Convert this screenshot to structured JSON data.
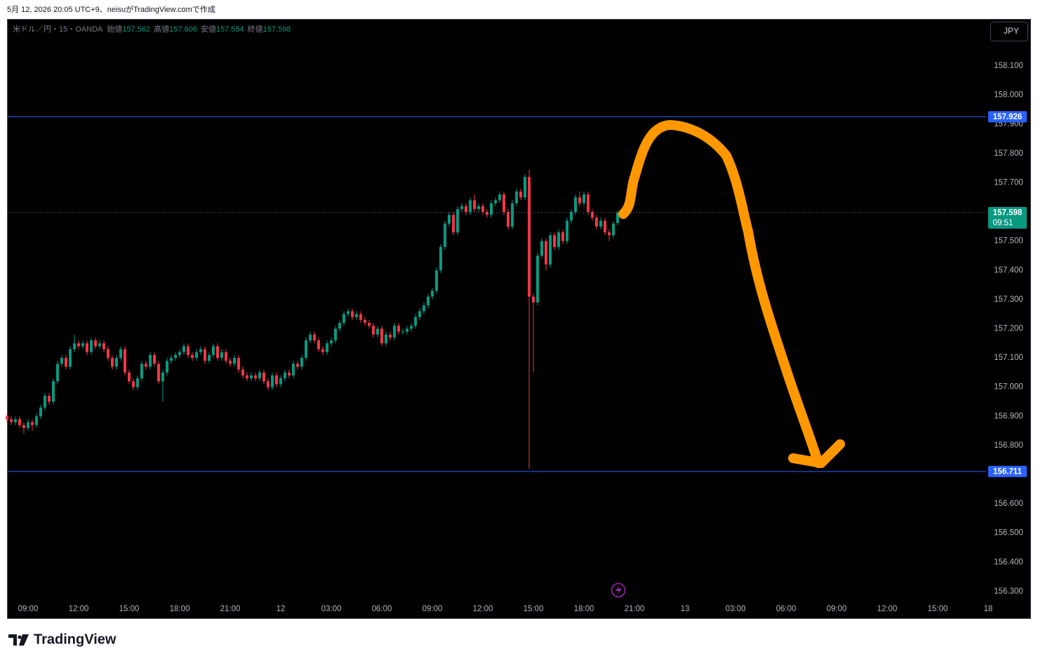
{
  "header": {
    "caption": "5月 12, 2026 20:05 UTC+9、neisuがTradingView.comで作成"
  },
  "footer": {
    "brand": "TradingView"
  },
  "chart_data": {
    "type": "candlestick",
    "symbol": "米ドル／円・15・OANDA",
    "currency": "JPY",
    "ohlc_legend": [
      {
        "label": "始値",
        "value": 157.562
      },
      {
        "label": "高値",
        "value": 157.606
      },
      {
        "label": "安値",
        "value": 157.554
      },
      {
        "label": "終値",
        "value": 157.598
      }
    ],
    "up_color": "#089981",
    "down_color": "#f23645",
    "grid": false,
    "x": [
      -1.25,
      -1,
      -0.75,
      -0.5,
      -0.25,
      0,
      0.25,
      0.5,
      0.75,
      1,
      1.25,
      1.5,
      1.75,
      2,
      2.25,
      2.5,
      2.75,
      3,
      3.25,
      3.5,
      3.75,
      4,
      4.25,
      4.5,
      4.75,
      5,
      5.25,
      5.5,
      5.75,
      6,
      6.25,
      6.5,
      6.75,
      7,
      7.25,
      7.5,
      7.75,
      8,
      8.25,
      8.5,
      8.75,
      9,
      9.25,
      9.5,
      9.75,
      10,
      10.25,
      10.5,
      10.75,
      11,
      11.25,
      11.5,
      11.75,
      12,
      12.25,
      12.5,
      12.75,
      13,
      13.25,
      13.5,
      13.75,
      14,
      14.25,
      14.5,
      14.75,
      15,
      15.25,
      15.5,
      15.75,
      16,
      16.25,
      16.5,
      16.75,
      17,
      17.25,
      17.5,
      17.75,
      18,
      18.25,
      18.5,
      18.75,
      19,
      19.25,
      19.5,
      19.75,
      20,
      20.25,
      20.5,
      20.75,
      21,
      21.25,
      21.5,
      21.75,
      22,
      22.25,
      22.5,
      22.75,
      23,
      23.25,
      23.5,
      23.75,
      24,
      24.25,
      24.5,
      24.75,
      25,
      25.25,
      25.5,
      25.75,
      26,
      26.25,
      26.5,
      26.75,
      27,
      27.25,
      27.5,
      27.75,
      28,
      28.25,
      28.5,
      28.75,
      29,
      29.25,
      29.5,
      29.75,
      30,
      30.25,
      30.5,
      30.75,
      31,
      31.25,
      31.5,
      31.75,
      32,
      32.25,
      32.5,
      32.75,
      33,
      33.25,
      33.5,
      33.75,
      34,
      34.25,
      34.5,
      34.75,
      35
    ],
    "open": [
      156.9,
      156.89,
      156.88,
      156.89,
      156.87,
      156.86,
      156.88,
      156.87,
      156.9,
      156.93,
      156.97,
      156.95,
      157.02,
      157.08,
      157.1,
      157.07,
      157.13,
      157.15,
      157.14,
      157.15,
      157.12,
      157.16,
      157.14,
      157.15,
      157.13,
      157.1,
      157.07,
      157.1,
      157.13,
      157.05,
      157.02,
      157.0,
      157.03,
      157.08,
      157.07,
      157.11,
      157.08,
      157.02,
      157.05,
      157.09,
      157.1,
      157.11,
      157.12,
      157.14,
      157.11,
      157.1,
      157.12,
      157.13,
      157.09,
      157.11,
      157.14,
      157.1,
      157.12,
      157.09,
      157.08,
      157.1,
      157.06,
      157.04,
      157.03,
      157.04,
      157.03,
      157.05,
      157.02,
      157.0,
      157.04,
      157.01,
      157.03,
      157.05,
      157.04,
      157.08,
      157.07,
      157.1,
      157.16,
      157.18,
      157.16,
      157.13,
      157.12,
      157.15,
      157.16,
      157.2,
      157.22,
      157.25,
      157.26,
      157.24,
      157.25,
      157.23,
      157.22,
      157.21,
      157.18,
      157.2,
      157.15,
      157.18,
      157.17,
      157.21,
      157.19,
      157.19,
      157.2,
      157.21,
      157.24,
      157.26,
      157.28,
      157.31,
      157.33,
      157.4,
      157.48,
      157.56,
      157.59,
      157.53,
      157.61,
      157.62,
      157.6,
      157.64,
      157.61,
      157.62,
      157.6,
      157.59,
      157.63,
      157.64,
      157.66,
      157.6,
      157.55,
      157.63,
      157.67,
      157.65,
      157.72,
      157.31,
      157.29,
      157.45,
      157.5,
      157.42,
      157.52,
      157.48,
      157.53,
      157.5,
      157.57,
      157.6,
      157.65,
      157.63,
      157.66,
      157.6,
      157.58,
      157.55,
      157.57,
      157.53,
      157.52,
      157.562
    ],
    "high": [
      156.91,
      156.9,
      156.9,
      156.9,
      156.88,
      156.89,
      156.89,
      156.91,
      156.94,
      156.98,
      156.98,
      157.03,
      157.09,
      157.11,
      157.11,
      157.14,
      157.18,
      157.16,
      157.16,
      157.16,
      157.17,
      157.17,
      157.16,
      157.16,
      157.14,
      157.11,
      157.11,
      157.14,
      157.14,
      157.06,
      157.03,
      157.04,
      157.09,
      157.09,
      157.12,
      157.12,
      157.09,
      157.06,
      157.1,
      157.11,
      157.12,
      157.13,
      157.15,
      157.15,
      157.12,
      157.13,
      157.14,
      157.14,
      157.12,
      157.15,
      157.15,
      157.13,
      157.13,
      157.1,
      157.11,
      157.11,
      157.07,
      157.05,
      157.05,
      157.05,
      157.06,
      157.06,
      157.03,
      157.05,
      157.05,
      157.04,
      157.06,
      157.06,
      157.09,
      157.09,
      157.11,
      157.17,
      157.19,
      157.19,
      157.17,
      157.14,
      157.16,
      157.17,
      157.21,
      157.23,
      157.26,
      157.27,
      157.27,
      157.26,
      157.26,
      157.24,
      157.23,
      157.22,
      157.21,
      157.21,
      157.19,
      157.19,
      157.22,
      157.22,
      157.2,
      157.21,
      157.22,
      157.25,
      157.27,
      157.29,
      157.32,
      157.34,
      157.41,
      157.49,
      157.57,
      157.6,
      157.6,
      157.62,
      157.63,
      157.63,
      157.65,
      157.66,
      157.63,
      157.63,
      157.61,
      157.64,
      157.65,
      157.67,
      157.67,
      157.61,
      157.64,
      157.68,
      157.68,
      157.73,
      157.745,
      157.32,
      157.46,
      157.51,
      157.51,
      157.53,
      157.53,
      157.54,
      157.54,
      157.58,
      157.61,
      157.66,
      157.67,
      157.67,
      157.67,
      157.61,
      157.59,
      157.58,
      157.58,
      157.54,
      157.57,
      157.606
    ],
    "low": [
      156.88,
      156.87,
      156.87,
      156.86,
      156.84,
      156.85,
      156.85,
      156.86,
      156.89,
      156.92,
      156.94,
      156.94,
      157.01,
      157.07,
      157.06,
      157.06,
      157.12,
      157.13,
      157.13,
      157.11,
      157.11,
      157.13,
      157.13,
      157.12,
      157.09,
      157.06,
      157.06,
      157.09,
      157.04,
      157.01,
      156.99,
      156.99,
      157.02,
      157.06,
      157.06,
      157.07,
      157.01,
      156.95,
      157.04,
      157.08,
      157.09,
      157.1,
      157.11,
      157.1,
      157.09,
      157.09,
      157.11,
      157.08,
      157.08,
      157.1,
      157.09,
      157.09,
      157.08,
      157.07,
      157.07,
      157.05,
      157.03,
      157.02,
      157.02,
      157.02,
      157.02,
      157.01,
      156.99,
      156.99,
      157.0,
      157.0,
      157.02,
      157.03,
      157.03,
      157.06,
      157.06,
      157.09,
      157.15,
      157.15,
      157.12,
      157.11,
      157.11,
      157.14,
      157.15,
      157.19,
      157.21,
      157.24,
      157.23,
      157.23,
      157.22,
      157.21,
      157.2,
      157.17,
      157.17,
      157.14,
      157.14,
      157.16,
      157.16,
      157.18,
      157.18,
      157.18,
      157.19,
      157.2,
      157.23,
      157.25,
      157.27,
      157.3,
      157.32,
      157.39,
      157.47,
      157.55,
      157.52,
      157.52,
      157.6,
      157.59,
      157.59,
      157.6,
      157.6,
      157.59,
      157.58,
      157.58,
      157.62,
      157.63,
      157.59,
      157.54,
      157.54,
      157.62,
      157.64,
      157.64,
      156.72,
      157.05,
      157.28,
      157.44,
      157.4,
      157.41,
      157.47,
      157.47,
      157.49,
      157.49,
      157.56,
      157.59,
      157.62,
      157.62,
      157.59,
      157.57,
      157.54,
      157.54,
      157.52,
      157.5,
      157.51,
      157.554
    ],
    "close": [
      156.89,
      156.88,
      156.89,
      156.87,
      156.86,
      156.88,
      156.87,
      156.9,
      156.93,
      156.97,
      156.95,
      157.02,
      157.08,
      157.1,
      157.07,
      157.13,
      157.15,
      157.14,
      157.15,
      157.12,
      157.16,
      157.14,
      157.15,
      157.13,
      157.1,
      157.07,
      157.1,
      157.13,
      157.05,
      157.02,
      157.0,
      157.03,
      157.08,
      157.07,
      157.11,
      157.08,
      157.02,
      157.05,
      157.09,
      157.1,
      157.11,
      157.12,
      157.14,
      157.11,
      157.1,
      157.12,
      157.13,
      157.09,
      157.11,
      157.14,
      157.1,
      157.12,
      157.09,
      157.08,
      157.1,
      157.06,
      157.04,
      157.03,
      157.04,
      157.03,
      157.05,
      157.02,
      157.0,
      157.04,
      157.01,
      157.03,
      157.05,
      157.04,
      157.08,
      157.07,
      157.1,
      157.16,
      157.18,
      157.16,
      157.13,
      157.12,
      157.15,
      157.16,
      157.2,
      157.22,
      157.25,
      157.26,
      157.24,
      157.25,
      157.23,
      157.22,
      157.21,
      157.18,
      157.2,
      157.15,
      157.18,
      157.17,
      157.21,
      157.19,
      157.19,
      157.2,
      157.21,
      157.24,
      157.26,
      157.28,
      157.31,
      157.33,
      157.4,
      157.48,
      157.56,
      157.59,
      157.53,
      157.61,
      157.62,
      157.6,
      157.64,
      157.61,
      157.62,
      157.6,
      157.59,
      157.63,
      157.64,
      157.66,
      157.6,
      157.55,
      157.63,
      157.67,
      157.65,
      157.72,
      157.31,
      157.29,
      157.45,
      157.5,
      157.42,
      157.52,
      157.48,
      157.53,
      157.5,
      157.57,
      157.6,
      157.65,
      157.63,
      157.66,
      157.6,
      157.58,
      157.55,
      157.57,
      157.53,
      157.52,
      157.56,
      157.598
    ],
    "xlim": [
      -1.25,
      57.25
    ],
    "xticks": [
      {
        "value": 0,
        "label": "09:00"
      },
      {
        "value": 3,
        "label": "12:00"
      },
      {
        "value": 6,
        "label": "15:00"
      },
      {
        "value": 9,
        "label": "18:00"
      },
      {
        "value": 12,
        "label": "21:00"
      },
      {
        "value": 15,
        "label": "12"
      },
      {
        "value": 18,
        "label": "03:00"
      },
      {
        "value": 21,
        "label": "06:00"
      },
      {
        "value": 24,
        "label": "09:00"
      },
      {
        "value": 27,
        "label": "12:00"
      },
      {
        "value": 30,
        "label": "15:00"
      },
      {
        "value": 33,
        "label": "18:00"
      },
      {
        "value": 36,
        "label": "21:00"
      },
      {
        "value": 39,
        "label": "13"
      },
      {
        "value": 42,
        "label": "03:00"
      },
      {
        "value": 45,
        "label": "06:00"
      },
      {
        "value": 48,
        "label": "09:00"
      },
      {
        "value": 51,
        "label": "12:00"
      },
      {
        "value": 54,
        "label": "15:00"
      },
      {
        "value": 57,
        "label": "18"
      }
    ],
    "ylim": [
      156.271,
      158.261
    ],
    "yticks": [
      {
        "value": 156.3,
        "label": "156.300"
      },
      {
        "value": 156.4,
        "label": "156.400"
      },
      {
        "value": 156.5,
        "label": "156.500"
      },
      {
        "value": 156.6,
        "label": "156.600"
      },
      {
        "value": 156.7,
        "label": "156.700"
      },
      {
        "value": 156.8,
        "label": "156.800"
      },
      {
        "value": 156.9,
        "label": "156.900"
      },
      {
        "value": 157.0,
        "label": "157.000"
      },
      {
        "value": 157.1,
        "label": "157.100"
      },
      {
        "value": 157.2,
        "label": "157.200"
      },
      {
        "value": 157.3,
        "label": "157.300"
      },
      {
        "value": 157.4,
        "label": "157.400"
      },
      {
        "value": 157.5,
        "label": "157.500"
      },
      {
        "value": 157.6,
        "label": "157.600"
      },
      {
        "value": 157.7,
        "label": "157.700"
      },
      {
        "value": 157.8,
        "label": "157.800"
      },
      {
        "value": 157.9,
        "label": "157.900"
      },
      {
        "value": 158.0,
        "label": "158.000"
      },
      {
        "value": 158.1,
        "label": "158.100"
      }
    ],
    "levels": [
      {
        "value": 157.926,
        "color": "#2962ff"
      },
      {
        "value": 156.711,
        "color": "#2962ff"
      }
    ],
    "last_price": 157.598,
    "countdown": "09:51"
  }
}
